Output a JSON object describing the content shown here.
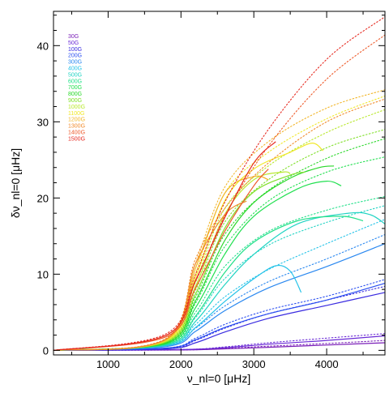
{
  "chart_data": {
    "type": "line",
    "xlabel": "ν_nl=0 [μHz]",
    "ylabel": "δν_nl=0 [μHz]",
    "xlim": [
      250,
      4800
    ],
    "ylim": [
      -0.6,
      44.5
    ],
    "x_ticks": [
      1000,
      2000,
      3000,
      4000
    ],
    "y_ticks": [
      0,
      10,
      20,
      30,
      40
    ],
    "grid": false,
    "legend_position": "top-left",
    "line_styles": {
      "solid": "model",
      "dotted": "approximation"
    },
    "series": [
      {
        "name": "30G",
        "color": "#7a1fb8",
        "solid": [
          [
            250,
            0
          ],
          [
            2000,
            0.05
          ],
          [
            2600,
            0.2
          ],
          [
            3200,
            0.4
          ],
          [
            4000,
            0.7
          ],
          [
            4800,
            1.0
          ]
        ],
        "dotted": [
          [
            250,
            0
          ],
          [
            2000,
            0.05
          ],
          [
            2600,
            0.25
          ],
          [
            3200,
            0.55
          ],
          [
            4000,
            0.9
          ],
          [
            4800,
            1.3
          ]
        ]
      },
      {
        "name": "50G",
        "color": "#6a2ad6",
        "solid": [
          [
            250,
            0
          ],
          [
            2000,
            0.1
          ],
          [
            2600,
            0.35
          ],
          [
            3200,
            0.8
          ],
          [
            4000,
            1.3
          ],
          [
            4800,
            1.9
          ]
        ],
        "dotted": [
          [
            250,
            0
          ],
          [
            2000,
            0.1
          ],
          [
            2600,
            0.45
          ],
          [
            3200,
            1.0
          ],
          [
            4000,
            1.6
          ],
          [
            4800,
            2.2
          ]
        ]
      },
      {
        "name": "100G",
        "color": "#3a2be0",
        "solid": [
          [
            250,
            0
          ],
          [
            1800,
            0.2
          ],
          [
            2200,
            1.0
          ],
          [
            2600,
            2.4
          ],
          [
            3200,
            4.2
          ],
          [
            4000,
            5.9
          ],
          [
            4800,
            7.6
          ]
        ],
        "dotted": [
          [
            250,
            0
          ],
          [
            1800,
            0.2
          ],
          [
            2200,
            1.3
          ],
          [
            2600,
            2.9
          ],
          [
            3200,
            4.8
          ],
          [
            4000,
            6.6
          ],
          [
            4800,
            8.4
          ]
        ]
      },
      {
        "name": "200G",
        "color": "#2a4ff0",
        "solid": [
          [
            250,
            0
          ],
          [
            1800,
            0.3
          ],
          [
            2200,
            1.4
          ],
          [
            2600,
            3.0
          ],
          [
            3200,
            4.8
          ],
          [
            4000,
            6.6
          ],
          [
            4800,
            8.8
          ]
        ],
        "dotted": [
          [
            250,
            0
          ],
          [
            1800,
            0.3
          ],
          [
            2200,
            1.6
          ],
          [
            2600,
            3.4
          ],
          [
            3200,
            5.3
          ],
          [
            4000,
            7.1
          ],
          [
            4800,
            9.3
          ]
        ]
      },
      {
        "name": "300G",
        "color": "#2a88f0",
        "solid": [
          [
            250,
            0
          ],
          [
            1800,
            0.5
          ],
          [
            2200,
            2.5
          ],
          [
            2600,
            5.2
          ],
          [
            3200,
            8.2
          ],
          [
            4000,
            11.0
          ],
          [
            4800,
            14.0
          ]
        ],
        "dotted": [
          [
            250,
            0
          ],
          [
            1800,
            0.6
          ],
          [
            2200,
            2.9
          ],
          [
            2600,
            5.8
          ],
          [
            3200,
            9.0
          ],
          [
            4000,
            12.0
          ],
          [
            4800,
            15.2
          ]
        ]
      },
      {
        "name": "400G",
        "color": "#25c3e8",
        "solid": [
          [
            250,
            0
          ],
          [
            1800,
            0.6
          ],
          [
            2200,
            3.0
          ],
          [
            2600,
            6.4
          ],
          [
            3000,
            9.4
          ],
          [
            3300,
            11.1
          ],
          [
            3500,
            10.4
          ],
          [
            3650,
            7.6
          ]
        ],
        "dotted": [
          [
            250,
            0
          ],
          [
            1800,
            0.7
          ],
          [
            2200,
            3.4
          ],
          [
            2600,
            7.0
          ],
          [
            3200,
            10.6
          ],
          [
            4000,
            14.0
          ],
          [
            4800,
            17.2
          ]
        ]
      },
      {
        "name": "500G",
        "color": "#22d4c4",
        "solid": [
          [
            250,
            0
          ],
          [
            1800,
            0.7
          ],
          [
            2200,
            3.8
          ],
          [
            2600,
            8.6
          ],
          [
            3000,
            12.6
          ],
          [
            3600,
            16.6
          ],
          [
            4300,
            18.0
          ],
          [
            4600,
            17.8
          ],
          [
            4800,
            16.6
          ]
        ],
        "dotted": [
          [
            250,
            0
          ],
          [
            1800,
            0.8
          ],
          [
            2200,
            4.3
          ],
          [
            2600,
            9.4
          ],
          [
            3200,
            13.8
          ],
          [
            4000,
            16.8
          ],
          [
            4800,
            19.0
          ]
        ]
      },
      {
        "name": "600G",
        "color": "#22e08a",
        "solid": [
          [
            250,
            0
          ],
          [
            1800,
            0.8
          ],
          [
            2200,
            4.5
          ],
          [
            2600,
            10.2
          ],
          [
            3000,
            14.2
          ],
          [
            3600,
            17.0
          ],
          [
            4200,
            17.6
          ],
          [
            4500,
            17.0
          ]
        ],
        "dotted": [
          [
            250,
            0
          ],
          [
            1800,
            0.9
          ],
          [
            2200,
            5.0
          ],
          [
            2600,
            11.0
          ],
          [
            3200,
            15.6
          ],
          [
            4000,
            18.4
          ],
          [
            4800,
            20.2
          ]
        ]
      },
      {
        "name": "700G",
        "color": "#22e050",
        "solid": [
          [
            250,
            0
          ],
          [
            1800,
            0.9
          ],
          [
            2200,
            5.6
          ],
          [
            2600,
            12.6
          ],
          [
            3000,
            17.6
          ],
          [
            3600,
            21.2
          ],
          [
            4000,
            22.2
          ],
          [
            4200,
            21.6
          ]
        ],
        "dotted": [
          [
            250,
            0
          ],
          [
            1800,
            1.0
          ],
          [
            2200,
            6.2
          ],
          [
            2600,
            13.6
          ],
          [
            3200,
            19.6
          ],
          [
            4000,
            23.4
          ],
          [
            4800,
            25.4
          ]
        ]
      },
      {
        "name": "800G",
        "color": "#2ad82a",
        "solid": [
          [
            250,
            0
          ],
          [
            1800,
            1.0
          ],
          [
            2200,
            6.5
          ],
          [
            2600,
            14.4
          ],
          [
            3000,
            19.4
          ],
          [
            3500,
            22.6
          ],
          [
            3900,
            24.0
          ],
          [
            4100,
            24.2
          ]
        ],
        "dotted": [
          [
            250,
            0
          ],
          [
            1800,
            1.1
          ],
          [
            2200,
            7.0
          ],
          [
            2600,
            15.2
          ],
          [
            3200,
            21.0
          ],
          [
            4000,
            25.2
          ],
          [
            4800,
            27.8
          ]
        ]
      },
      {
        "name": "900G",
        "color": "#80e02a",
        "solid": [
          [
            250,
            0
          ],
          [
            1800,
            1.1
          ],
          [
            2200,
            7.4
          ],
          [
            2600,
            16.0
          ],
          [
            3000,
            20.8
          ],
          [
            3500,
            23.0
          ],
          [
            3700,
            23.4
          ]
        ],
        "dotted": [
          [
            250,
            0
          ],
          [
            1800,
            1.2
          ],
          [
            2200,
            7.9
          ],
          [
            2600,
            16.8
          ],
          [
            3200,
            22.4
          ],
          [
            4000,
            26.6
          ],
          [
            4800,
            29.0
          ]
        ]
      },
      {
        "name": "1000G",
        "color": "#b8e82a",
        "solid": [
          [
            250,
            0
          ],
          [
            1800,
            1.2
          ],
          [
            2200,
            8.4
          ],
          [
            2600,
            17.8
          ],
          [
            3000,
            22.4
          ],
          [
            3400,
            23.4
          ],
          [
            3500,
            23.2
          ]
        ],
        "dotted": [
          [
            250,
            0
          ],
          [
            1800,
            1.3
          ],
          [
            2200,
            9.0
          ],
          [
            2600,
            18.6
          ],
          [
            3200,
            24.2
          ],
          [
            4000,
            28.6
          ],
          [
            4800,
            31.6
          ]
        ]
      },
      {
        "name": "1100G",
        "color": "#f0e82a",
        "solid": [
          [
            250,
            0
          ],
          [
            1800,
            1.3
          ],
          [
            2200,
            9.6
          ],
          [
            2600,
            19.6
          ],
          [
            3000,
            23.8
          ],
          [
            3500,
            26.0
          ],
          [
            3800,
            27.2
          ],
          [
            3950,
            26.2
          ]
        ],
        "dotted": [
          [
            250,
            0
          ],
          [
            1800,
            1.4
          ],
          [
            2200,
            10.2
          ],
          [
            2600,
            20.6
          ],
          [
            3200,
            26.0
          ],
          [
            4000,
            30.4
          ],
          [
            4800,
            33.4
          ]
        ]
      },
      {
        "name": "1200G",
        "color": "#f2b62a",
        "solid": [
          [
            250,
            0
          ],
          [
            1800,
            1.4
          ],
          [
            2200,
            10.8
          ],
          [
            2600,
            20.6
          ],
          [
            3000,
            22.8
          ],
          [
            3200,
            22.4
          ]
        ],
        "dotted": [
          [
            250,
            0
          ],
          [
            1800,
            1.5
          ],
          [
            2200,
            11.4
          ],
          [
            2600,
            21.4
          ],
          [
            3200,
            27.4
          ],
          [
            4000,
            31.8
          ],
          [
            4800,
            34.2
          ]
        ]
      },
      {
        "name": "1300G",
        "color": "#f08a2a",
        "solid": [
          [
            250,
            0
          ],
          [
            1800,
            1.5
          ],
          [
            2200,
            11.4
          ],
          [
            2600,
            17.8
          ],
          [
            2900,
            19.6
          ]
        ],
        "dotted": [
          [
            250,
            0
          ],
          [
            1800,
            1.6
          ],
          [
            2200,
            12.0
          ],
          [
            2600,
            18.6
          ],
          [
            3200,
            24.6
          ],
          [
            4000,
            30.0
          ],
          [
            4800,
            33.0
          ]
        ]
      },
      {
        "name": "1400G",
        "color": "#ee5a2a",
        "solid": [
          [
            250,
            0
          ],
          [
            1800,
            1.8
          ],
          [
            2200,
            8.2
          ],
          [
            2600,
            15.6
          ],
          [
            3000,
            21.6
          ],
          [
            3200,
            23.8
          ]
        ],
        "dotted": [
          [
            250,
            0
          ],
          [
            1800,
            2.0
          ],
          [
            2200,
            9.0
          ],
          [
            2600,
            17.6
          ],
          [
            3200,
            26.8
          ],
          [
            4000,
            35.6
          ],
          [
            4800,
            41.4
          ]
        ]
      },
      {
        "name": "1500G",
        "color": "#e62a20",
        "solid": [
          [
            250,
            0
          ],
          [
            1800,
            2.0
          ],
          [
            2200,
            9.2
          ],
          [
            2600,
            17.4
          ],
          [
            3000,
            24.6
          ],
          [
            3300,
            27.4
          ]
        ],
        "dotted": [
          [
            250,
            0
          ],
          [
            1800,
            2.2
          ],
          [
            2200,
            10.0
          ],
          [
            2600,
            19.4
          ],
          [
            3200,
            29.0
          ],
          [
            4000,
            38.2
          ],
          [
            4800,
            43.8
          ]
        ]
      }
    ]
  }
}
